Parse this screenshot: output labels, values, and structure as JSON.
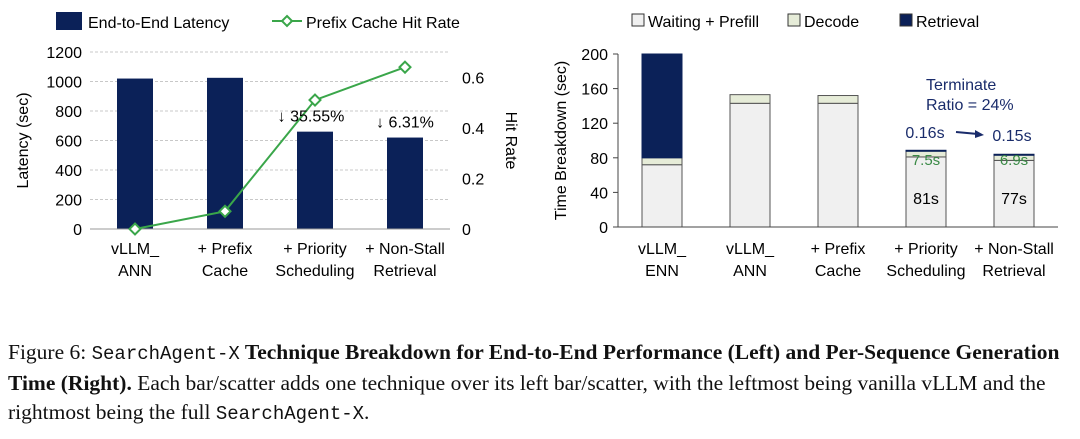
{
  "chart_data": [
    {
      "type": "bar+line",
      "categories": [
        "vLLM_\nANN",
        "+ Prefix\nCache",
        "+ Priority\nScheduling",
        "+ Non-Stall\nRetrieval"
      ],
      "series": [
        {
          "name": "End-to-End Latency",
          "kind": "bar",
          "axis": "left",
          "color": "#0b2158",
          "values": [
            1020,
            1025,
            660,
            620
          ]
        },
        {
          "name": "Prefix Cache Hit Rate",
          "kind": "line",
          "axis": "right",
          "color": "#3aa64a",
          "values": [
            0.0,
            0.07,
            0.51,
            0.64
          ]
        }
      ],
      "ylabel": "Latency (sec)",
      "ylim": [
        0,
        1200
      ],
      "yticks": [
        "0",
        "200",
        "400",
        "600",
        "800",
        "1000",
        "1200"
      ],
      "y2label": "Hit Rate",
      "y2lim": [
        0,
        0.7
      ],
      "y2ticks": [
        "0",
        "0.2",
        "0.4",
        "0.6"
      ],
      "annotations": [
        {
          "category_index": 2,
          "text": "↓ 35.55%"
        },
        {
          "category_index": 3,
          "text": "↓ 6.31%"
        }
      ],
      "grid": "horizontal",
      "legend": "top"
    },
    {
      "type": "stacked-bar",
      "categories": [
        "vLLM_\nENN",
        "vLLM_\nANN",
        "+ Prefix\nCache",
        "+ Priority\nScheduling",
        "+ Non-Stall\nRetrieval"
      ],
      "series": [
        {
          "name": "Waiting + Prefill",
          "color": "#f0f0f0",
          "values": [
            72,
            143,
            143,
            81,
            77
          ]
        },
        {
          "name": "Decode",
          "color": "#e6ecd8",
          "values": [
            8,
            10,
            9,
            7.5,
            6.9
          ]
        },
        {
          "name": "Retrieval",
          "color": "#0b2158",
          "values": [
            120,
            0,
            0,
            0.16,
            0.15
          ]
        }
      ],
      "ylabel": "Time Breakdown (sec)",
      "ylim": [
        0,
        200
      ],
      "yticks": [
        "0",
        "40",
        "80",
        "120",
        "160",
        "200"
      ],
      "bar_labels": [
        {
          "category_index": 3,
          "labels": [
            "81s",
            "7.5s"
          ]
        },
        {
          "category_index": 4,
          "labels": [
            "77s",
            "6.9s"
          ]
        }
      ],
      "annotations": {
        "terminate_line1": "Terminate",
        "terminate_line2": "Ratio = 24%",
        "retrieval_from": "0.16s",
        "retrieval_to": "0.15s"
      },
      "legend": "top"
    }
  ],
  "caption": {
    "figure_label": "Figure 6: ",
    "system_name": "SearchAgent-X",
    "title_bold": " Technique Breakdown for End-to-End Performance (Left) and Per-Sequence Generation Time (Right).",
    "body": " Each bar/scatter adds one technique over its left bar/scatter, with the leftmost being vanilla vLLM and the rightmost being the full ",
    "end_name": "SearchAgent-X",
    "end_punct": "."
  }
}
